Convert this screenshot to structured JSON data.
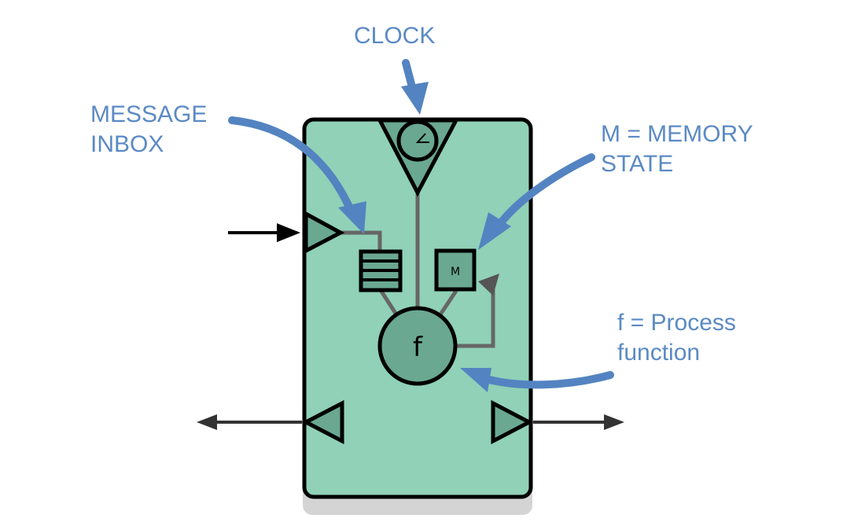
{
  "labels": {
    "clock": "CLOCK",
    "message_line1": "MESSAGE",
    "message_line2": "INBOX",
    "memory_line1": "M = MEMORY",
    "memory_line2": "STATE",
    "process_line1": "f = Process",
    "process_line2": "function"
  },
  "symbols": {
    "memory": "M",
    "function": "f"
  },
  "colors": {
    "annotation": "#5b8ac4",
    "annotation_arrow": "#5384c1",
    "block_fill": "#90d1b7",
    "component_fill": "#6aa892",
    "shadow": "#d4d4d4",
    "connector": "#666666"
  }
}
